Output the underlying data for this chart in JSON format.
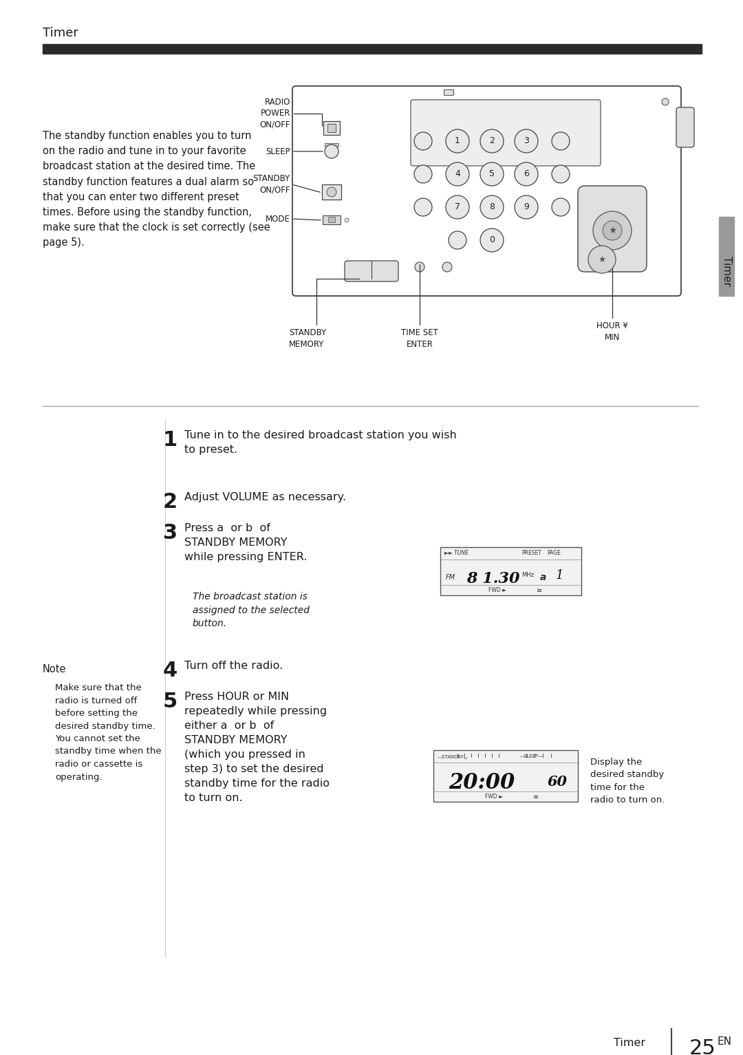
{
  "page_bg": "#ffffff",
  "header_title": "Timer",
  "header_bar_color": "#2b2b2b",
  "footer_text_left": "Timer",
  "footer_page": "25",
  "footer_superscript": "EN",
  "side_tab_text": "Timer",
  "intro_text": "The standby function enables you to turn\non the radio and tune in to your favorite\nbroadcast station at the desired time. The\nstandby function features a dual alarm so\nthat you can enter two different preset\ntimes. Before using the standby function,\nmake sure that the clock is set correctly (see\npage 5).",
  "label_radio_power_onoff": "RADIO\nPOWER\nON/OFF",
  "label_sleep": "SLEEP",
  "label_standby_onoff": "STANDBY\nON/OFF",
  "label_mode": "MODE",
  "label_standby_memory": "STANDBY\nMEMORY",
  "label_time_set_enter": "TIME SET\nENTER",
  "label_hour_min": "HOUR ¥\nMIN",
  "step1": "Tune in to the desired broadcast station you wish\nto preset.",
  "step2": "Adjust VOLUME as necessary.",
  "step3_line1": "Press ",
  "step3_a": "a",
  "step3_mid": "  or ",
  "step3_b": "b",
  "step3_line2": "  of\nSTANDBY MEMORY\nwhile pressing ENTER.",
  "step3_note": "The broadcast station is\nassigned to the selected\nbutton.",
  "step4": "Turn off the radio.",
  "step5_line1": "Press HOUR or MIN\nrepeatedly while pressing\neither ",
  "step5_a": "a",
  "step5_mid": "  or ",
  "step5_b": "b",
  "step5_line2": "  of\nSTANDBY MEMORY\n(which you pressed in\nstep 3) to set the desired\nstandby time for the radio\nto turn on.",
  "note_title": "Note",
  "note_text": "Make sure that the\nradio is turned off\nbefore setting the\ndesired standby time.\nYou cannot set the\nstandby time when the\nradio or cassette is\noperating.",
  "display_caption": "Display the\ndesired standby\ntime for the\nradio to turn on.",
  "text_color": "#1a1a1a"
}
